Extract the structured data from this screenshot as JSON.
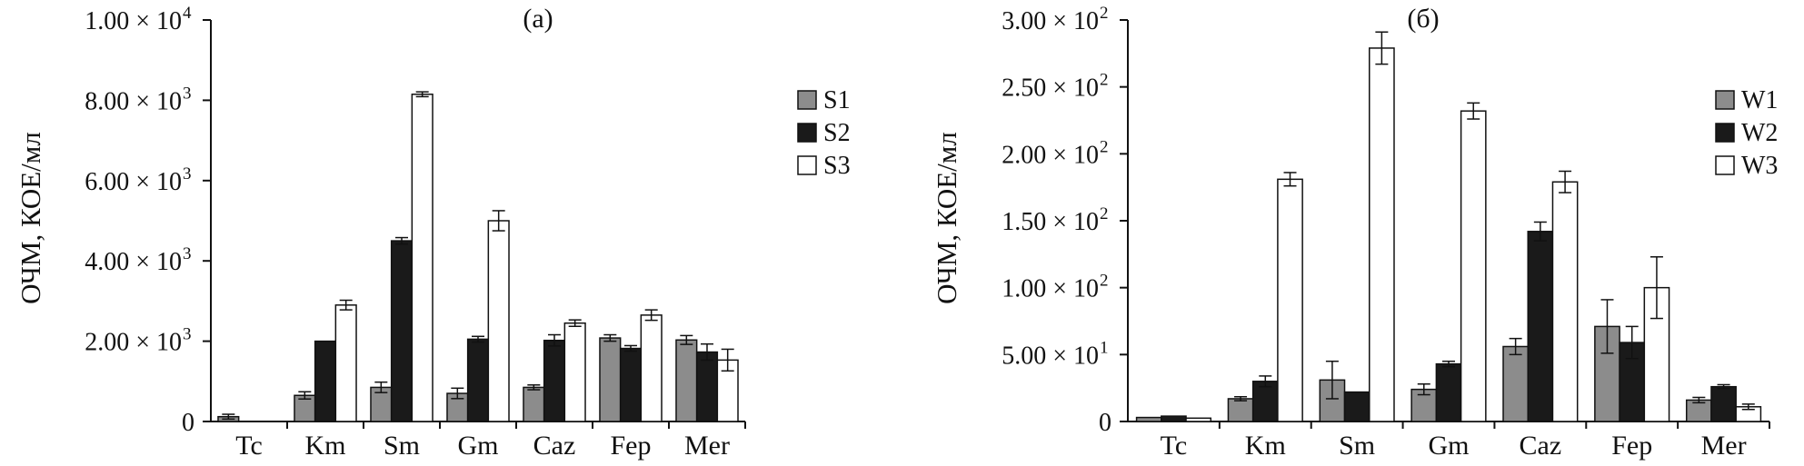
{
  "chart_data": [
    {
      "type": "bar",
      "title": "(a)",
      "ylabel": "ОЧМ, КОЕ/мл",
      "ylim": [
        0,
        10000
      ],
      "yticks": [
        {
          "value": 0,
          "mantissa": "0",
          "exp": ""
        },
        {
          "value": 2000,
          "mantissa": "2.00 × 10",
          "exp": "3"
        },
        {
          "value": 4000,
          "mantissa": "4.00 × 10",
          "exp": "3"
        },
        {
          "value": 6000,
          "mantissa": "6.00 × 10",
          "exp": "3"
        },
        {
          "value": 8000,
          "mantissa": "8.00 × 10",
          "exp": "3"
        },
        {
          "value": 10000,
          "mantissa": "1.00 × 10",
          "exp": "4"
        }
      ],
      "categories": [
        "Tc",
        "Km",
        "Sm",
        "Gm",
        "Caz",
        "Fep",
        "Mer"
      ],
      "legend_position": "right",
      "series": [
        {
          "name": "S1",
          "color": "#8c8c8c",
          "values": [
            120,
            650,
            850,
            700,
            850,
            2080,
            2030
          ],
          "errors": [
            60,
            90,
            130,
            130,
            60,
            80,
            110
          ]
        },
        {
          "name": "S2",
          "color": "#1a1a1a",
          "values": [
            0,
            2000,
            4500,
            2050,
            2020,
            1820,
            1730
          ],
          "errors": [
            0,
            0,
            80,
            70,
            140,
            70,
            200
          ]
        },
        {
          "name": "S3",
          "color": "#ffffff",
          "values": [
            0,
            2900,
            8150,
            5000,
            2450,
            2650,
            1530
          ],
          "errors": [
            0,
            120,
            60,
            250,
            80,
            130,
            270
          ]
        }
      ]
    },
    {
      "type": "bar",
      "title": "(б)",
      "ylabel": "ОЧМ, КОЕ/мл",
      "ylim": [
        0,
        300
      ],
      "yticks": [
        {
          "value": 0,
          "mantissa": "0",
          "exp": ""
        },
        {
          "value": 50,
          "mantissa": "5.00 × 10",
          "exp": "1"
        },
        {
          "value": 100,
          "mantissa": "1.00 × 10",
          "exp": "2"
        },
        {
          "value": 150,
          "mantissa": "1.50 × 10",
          "exp": "2"
        },
        {
          "value": 200,
          "mantissa": "2.00 × 10",
          "exp": "2"
        },
        {
          "value": 250,
          "mantissa": "2.50 × 10",
          "exp": "2"
        },
        {
          "value": 300,
          "mantissa": "3.00 × 10",
          "exp": "2"
        }
      ],
      "categories": [
        "Tc",
        "Km",
        "Sm",
        "Gm",
        "Caz",
        "Fep",
        "Mer"
      ],
      "legend_position": "right",
      "series": [
        {
          "name": "W1",
          "color": "#8c8c8c",
          "values": [
            3,
            17,
            31,
            24,
            56,
            71,
            16
          ],
          "errors": [
            0,
            1.5,
            14,
            4,
            6,
            20,
            2
          ]
        },
        {
          "name": "W2",
          "color": "#1a1a1a",
          "values": [
            4,
            30,
            22,
            43,
            142,
            59,
            26
          ],
          "errors": [
            0,
            4,
            0,
            2,
            7,
            12,
            1.5
          ]
        },
        {
          "name": "W3",
          "color": "#ffffff",
          "values": [
            2.5,
            181,
            279,
            232,
            179,
            100,
            11
          ],
          "errors": [
            0,
            5,
            12,
            6,
            8,
            23,
            2
          ]
        }
      ]
    }
  ]
}
